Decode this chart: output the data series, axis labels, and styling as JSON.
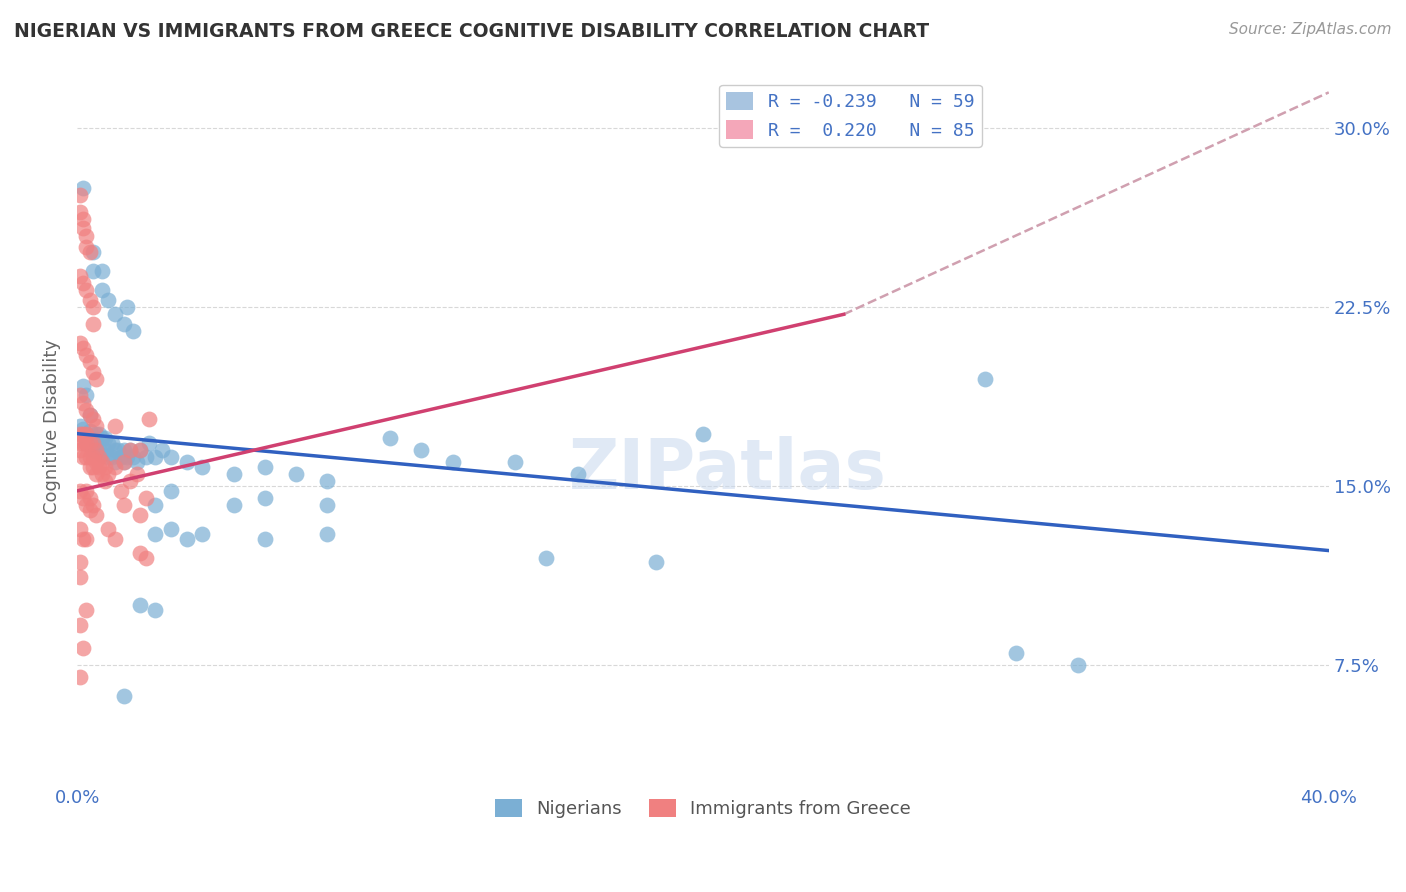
{
  "title": "NIGERIAN VS IMMIGRANTS FROM GREECE COGNITIVE DISABILITY CORRELATION CHART",
  "source": "Source: ZipAtlas.com",
  "ylabel": "Cognitive Disability",
  "ytick_labels": [
    "7.5%",
    "15.0%",
    "22.5%",
    "30.0%"
  ],
  "ytick_values": [
    0.075,
    0.15,
    0.225,
    0.3
  ],
  "xlim": [
    0.0,
    0.4
  ],
  "ylim": [
    0.025,
    0.325
  ],
  "watermark": "ZIPatlas",
  "nigerians_color": "#7bafd4",
  "greece_color": "#f08080",
  "nigerian_line_color": "#3060c0",
  "greece_line_color": "#d04070",
  "dashed_line_color": "#d0a0b0",
  "nigerian_line": [
    [
      0.0,
      0.172
    ],
    [
      0.4,
      0.123
    ]
  ],
  "greece_solid_line": [
    [
      0.0,
      0.148
    ],
    [
      0.245,
      0.222
    ]
  ],
  "greece_dashed_line": [
    [
      0.245,
      0.222
    ],
    [
      0.4,
      0.315
    ]
  ],
  "nigerian_points": [
    [
      0.002,
      0.275
    ],
    [
      0.005,
      0.248
    ],
    [
      0.005,
      0.24
    ],
    [
      0.008,
      0.24
    ],
    [
      0.008,
      0.232
    ],
    [
      0.01,
      0.228
    ],
    [
      0.012,
      0.222
    ],
    [
      0.015,
      0.218
    ],
    [
      0.016,
      0.225
    ],
    [
      0.018,
      0.215
    ],
    [
      0.002,
      0.192
    ],
    [
      0.003,
      0.188
    ],
    [
      0.004,
      0.18
    ],
    [
      0.001,
      0.175
    ],
    [
      0.002,
      0.174
    ],
    [
      0.003,
      0.172
    ],
    [
      0.003,
      0.168
    ],
    [
      0.004,
      0.173
    ],
    [
      0.005,
      0.17
    ],
    [
      0.005,
      0.165
    ],
    [
      0.006,
      0.172
    ],
    [
      0.006,
      0.168
    ],
    [
      0.007,
      0.172
    ],
    [
      0.007,
      0.165
    ],
    [
      0.008,
      0.17
    ],
    [
      0.008,
      0.163
    ],
    [
      0.009,
      0.17
    ],
    [
      0.009,
      0.165
    ],
    [
      0.01,
      0.168
    ],
    [
      0.01,
      0.162
    ],
    [
      0.011,
      0.168
    ],
    [
      0.011,
      0.162
    ],
    [
      0.012,
      0.165
    ],
    [
      0.012,
      0.16
    ],
    [
      0.013,
      0.165
    ],
    [
      0.014,
      0.162
    ],
    [
      0.015,
      0.165
    ],
    [
      0.015,
      0.16
    ],
    [
      0.016,
      0.162
    ],
    [
      0.017,
      0.165
    ],
    [
      0.018,
      0.162
    ],
    [
      0.019,
      0.16
    ],
    [
      0.02,
      0.165
    ],
    [
      0.022,
      0.162
    ],
    [
      0.023,
      0.168
    ],
    [
      0.025,
      0.162
    ],
    [
      0.027,
      0.165
    ],
    [
      0.03,
      0.162
    ],
    [
      0.035,
      0.16
    ],
    [
      0.04,
      0.158
    ],
    [
      0.05,
      0.155
    ],
    [
      0.06,
      0.158
    ],
    [
      0.07,
      0.155
    ],
    [
      0.08,
      0.152
    ],
    [
      0.1,
      0.17
    ],
    [
      0.11,
      0.165
    ],
    [
      0.12,
      0.16
    ],
    [
      0.14,
      0.16
    ],
    [
      0.025,
      0.142
    ],
    [
      0.03,
      0.148
    ],
    [
      0.05,
      0.142
    ],
    [
      0.06,
      0.145
    ],
    [
      0.08,
      0.142
    ],
    [
      0.16,
      0.155
    ],
    [
      0.2,
      0.172
    ],
    [
      0.29,
      0.195
    ],
    [
      0.025,
      0.13
    ],
    [
      0.03,
      0.132
    ],
    [
      0.035,
      0.128
    ],
    [
      0.04,
      0.13
    ],
    [
      0.06,
      0.128
    ],
    [
      0.08,
      0.13
    ],
    [
      0.15,
      0.12
    ],
    [
      0.185,
      0.118
    ],
    [
      0.02,
      0.1
    ],
    [
      0.025,
      0.098
    ],
    [
      0.015,
      0.062
    ],
    [
      0.3,
      0.08
    ],
    [
      0.32,
      0.075
    ]
  ],
  "greece_points": [
    [
      0.001,
      0.272
    ],
    [
      0.001,
      0.265
    ],
    [
      0.002,
      0.262
    ],
    [
      0.002,
      0.258
    ],
    [
      0.003,
      0.255
    ],
    [
      0.003,
      0.25
    ],
    [
      0.004,
      0.248
    ],
    [
      0.001,
      0.238
    ],
    [
      0.002,
      0.235
    ],
    [
      0.003,
      0.232
    ],
    [
      0.004,
      0.228
    ],
    [
      0.005,
      0.225
    ],
    [
      0.005,
      0.218
    ],
    [
      0.001,
      0.21
    ],
    [
      0.002,
      0.208
    ],
    [
      0.003,
      0.205
    ],
    [
      0.004,
      0.202
    ],
    [
      0.005,
      0.198
    ],
    [
      0.006,
      0.195
    ],
    [
      0.001,
      0.188
    ],
    [
      0.002,
      0.185
    ],
    [
      0.003,
      0.182
    ],
    [
      0.004,
      0.18
    ],
    [
      0.005,
      0.178
    ],
    [
      0.006,
      0.175
    ],
    [
      0.001,
      0.172
    ],
    [
      0.001,
      0.168
    ],
    [
      0.001,
      0.165
    ],
    [
      0.002,
      0.172
    ],
    [
      0.002,
      0.168
    ],
    [
      0.002,
      0.162
    ],
    [
      0.003,
      0.172
    ],
    [
      0.003,
      0.168
    ],
    [
      0.003,
      0.162
    ],
    [
      0.004,
      0.168
    ],
    [
      0.004,
      0.162
    ],
    [
      0.004,
      0.158
    ],
    [
      0.005,
      0.168
    ],
    [
      0.005,
      0.162
    ],
    [
      0.005,
      0.158
    ],
    [
      0.006,
      0.165
    ],
    [
      0.006,
      0.16
    ],
    [
      0.006,
      0.155
    ],
    [
      0.007,
      0.162
    ],
    [
      0.007,
      0.158
    ],
    [
      0.008,
      0.16
    ],
    [
      0.008,
      0.155
    ],
    [
      0.009,
      0.158
    ],
    [
      0.009,
      0.152
    ],
    [
      0.01,
      0.155
    ],
    [
      0.001,
      0.148
    ],
    [
      0.002,
      0.145
    ],
    [
      0.003,
      0.148
    ],
    [
      0.003,
      0.142
    ],
    [
      0.004,
      0.145
    ],
    [
      0.004,
      0.14
    ],
    [
      0.005,
      0.142
    ],
    [
      0.006,
      0.138
    ],
    [
      0.001,
      0.132
    ],
    [
      0.002,
      0.128
    ],
    [
      0.003,
      0.128
    ],
    [
      0.001,
      0.118
    ],
    [
      0.001,
      0.112
    ],
    [
      0.001,
      0.092
    ],
    [
      0.002,
      0.082
    ],
    [
      0.003,
      0.098
    ],
    [
      0.001,
      0.07
    ],
    [
      0.02,
      0.165
    ],
    [
      0.023,
      0.178
    ],
    [
      0.01,
      0.132
    ],
    [
      0.012,
      0.128
    ],
    [
      0.012,
      0.175
    ],
    [
      0.015,
      0.142
    ],
    [
      0.02,
      0.138
    ],
    [
      0.02,
      0.122
    ],
    [
      0.022,
      0.12
    ],
    [
      0.022,
      0.145
    ],
    [
      0.019,
      0.155
    ],
    [
      0.012,
      0.158
    ],
    [
      0.015,
      0.16
    ],
    [
      0.017,
      0.152
    ],
    [
      0.017,
      0.165
    ],
    [
      0.014,
      0.148
    ]
  ]
}
